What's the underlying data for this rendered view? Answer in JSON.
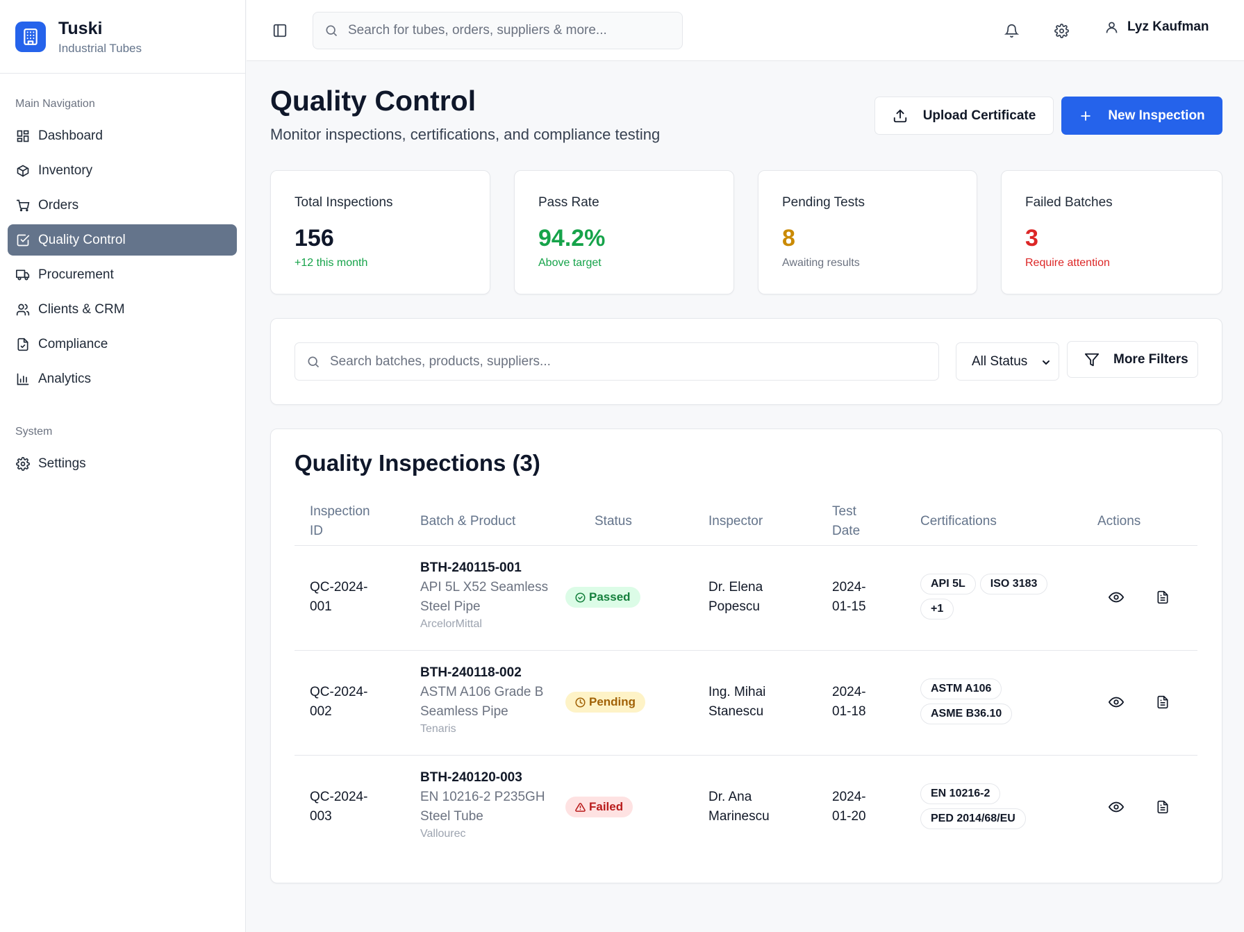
{
  "brand": {
    "name": "Tuski",
    "subtitle": "Industrial Tubes"
  },
  "sidebar": {
    "main_label": "Main Navigation",
    "items": [
      {
        "label": "Dashboard",
        "icon": "dashboard-icon"
      },
      {
        "label": "Inventory",
        "icon": "package-icon"
      },
      {
        "label": "Orders",
        "icon": "cart-icon"
      },
      {
        "label": "Quality Control",
        "icon": "checkbox-icon",
        "active": true
      },
      {
        "label": "Procurement",
        "icon": "truck-icon"
      },
      {
        "label": "Clients & CRM",
        "icon": "users-icon"
      },
      {
        "label": "Compliance",
        "icon": "file-check-icon"
      },
      {
        "label": "Analytics",
        "icon": "bar-chart-icon"
      }
    ],
    "system_label": "System",
    "system_items": [
      {
        "label": "Settings",
        "icon": "gear-icon"
      }
    ]
  },
  "topbar": {
    "search_placeholder": "Search for tubes, orders, suppliers & more...",
    "user_name": "Lyz Kaufman"
  },
  "header": {
    "title": "Quality Control",
    "subtitle": "Monitor inspections, certifications, and compliance testing",
    "upload_label": "Upload Certificate",
    "new_label": "New Inspection"
  },
  "stats": [
    {
      "label": "Total Inspections",
      "value": "156",
      "note": "+12 this month",
      "value_color": "#0f172a",
      "note_color": "#16a34a"
    },
    {
      "label": "Pass Rate",
      "value": "94.2%",
      "note": "Above target",
      "value_color": "#16a34a",
      "note_color": "#16a34a"
    },
    {
      "label": "Pending Tests",
      "value": "8",
      "note": "Awaiting results",
      "value_color": "#ca8a04",
      "note_color": "#6b7280"
    },
    {
      "label": "Failed Batches",
      "value": "3",
      "note": "Require attention",
      "value_color": "#dc2626",
      "note_color": "#dc2626"
    }
  ],
  "filters": {
    "search_placeholder": "Search batches, products, suppliers...",
    "status_selected": "All Status",
    "more_label": "More Filters"
  },
  "table": {
    "title": "Quality Inspections (3)",
    "headers": {
      "id_line1": "Inspection",
      "id_line2": "ID",
      "batch": "Batch & Product",
      "status": "Status",
      "inspector": "Inspector",
      "date_line1": "Test",
      "date_line2": "Date",
      "certs": "Certifications",
      "actions": "Actions"
    },
    "rows": [
      {
        "id_line1": "QC-2024-",
        "id_line2": "001",
        "batch": "BTH-240115-001",
        "product_line1": "API 5L X52 Seamless",
        "product_line2": "Steel Pipe",
        "supplier": "ArcelorMittal",
        "status": "Passed",
        "inspector_line1": "Dr. Elena",
        "inspector_line2": "Popescu",
        "date_line1": "2024-",
        "date_line2": "01-15",
        "certs": [
          "API 5L",
          "ISO 3183",
          "+1"
        ]
      },
      {
        "id_line1": "QC-2024-",
        "id_line2": "002",
        "batch": "BTH-240118-002",
        "product_line1": "ASTM A106 Grade B",
        "product_line2": "Seamless Pipe",
        "supplier": "Tenaris",
        "status": "Pending",
        "inspector_line1": "Ing. Mihai",
        "inspector_line2": "Stanescu",
        "date_line1": "2024-",
        "date_line2": "01-18",
        "certs": [
          "ASTM A106",
          "ASME B36.10"
        ]
      },
      {
        "id_line1": "QC-2024-",
        "id_line2": "003",
        "batch": "BTH-240120-003",
        "product_line1": "EN 10216-2 P235GH",
        "product_line2": "Steel Tube",
        "supplier": "Vallourec",
        "status": "Failed",
        "inspector_line1": "Dr. Ana",
        "inspector_line2": "Marinescu",
        "date_line1": "2024-",
        "date_line2": "01-20",
        "certs": [
          "EN 10216-2",
          "PED 2014/68/EU"
        ]
      }
    ]
  }
}
